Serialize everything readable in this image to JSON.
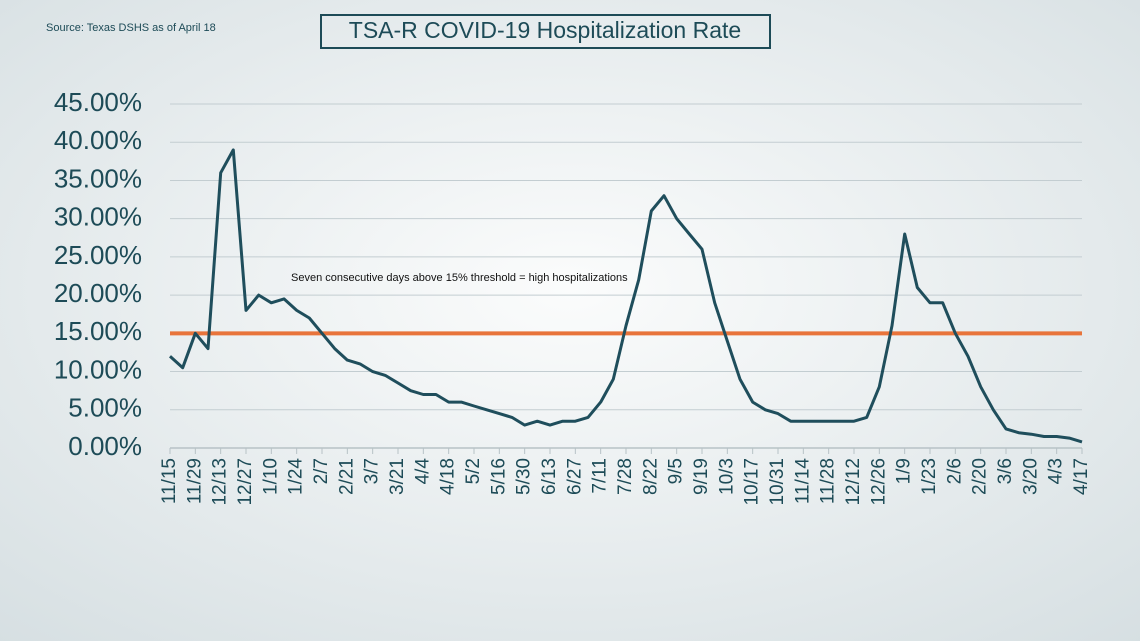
{
  "chart_data": {
    "type": "line",
    "title": "TSA-R COVID-19 Hospitalization Rate",
    "source": "Source: Texas DSHS as of April 18",
    "annotation": "Seven consecutive days above 15% threshold = high hospitalizations",
    "categories": [
      "11/15",
      null,
      "11/29",
      null,
      "12/13",
      null,
      "12/27",
      null,
      "1/10",
      null,
      "1/24",
      null,
      "2/7",
      null,
      "2/21",
      null,
      "3/7",
      null,
      "3/21",
      null,
      "4/4",
      null,
      "4/18",
      null,
      "5/2",
      null,
      "5/16",
      null,
      "5/30",
      null,
      "6/13",
      null,
      "6/27",
      null,
      "7/11",
      null,
      "7/28",
      null,
      "8/22",
      null,
      "9/5",
      null,
      "9/19",
      null,
      "10/3",
      null,
      "10/17",
      null,
      "10/31",
      null,
      "11/14",
      null,
      "11/28",
      null,
      "12/12",
      null,
      "12/26",
      null,
      "1/9",
      null,
      "1/23",
      null,
      "2/6",
      null,
      "2/20",
      null,
      "3/6",
      null,
      "3/20",
      null,
      "4/3",
      null,
      "4/17"
    ],
    "series": [
      {
        "name": "Hospitalization rate",
        "color": "#1f4e5c",
        "values": [
          12,
          10.5,
          15,
          13,
          36,
          39,
          18,
          20,
          19,
          19.5,
          18,
          17,
          15,
          13,
          11.5,
          11,
          10,
          9.5,
          8.5,
          7.5,
          7,
          7,
          6,
          6,
          5.5,
          5,
          4.5,
          4,
          3,
          3.5,
          3,
          3.5,
          3.5,
          4,
          6,
          9,
          16,
          22,
          31,
          33,
          30,
          28,
          26,
          19,
          14,
          9,
          6,
          5,
          4.5,
          3.5,
          3.5,
          3.5,
          3.5,
          3.5,
          3.5,
          4,
          8,
          16,
          28,
          21,
          19,
          19,
          15,
          12,
          8,
          5,
          2.5,
          2,
          1.8,
          1.5,
          1.5,
          1.3,
          0.8
        ]
      }
    ],
    "threshold": 15,
    "threshold_color": "#e8743b",
    "ylim": [
      0,
      45
    ],
    "yticks": [
      {
        "value": 0,
        "label": "0.00%"
      },
      {
        "value": 5,
        "label": "5.00%"
      },
      {
        "value": 10,
        "label": "10.00%"
      },
      {
        "value": 15,
        "label": "15.00%"
      },
      {
        "value": 20,
        "label": "20.00%"
      },
      {
        "value": 25,
        "label": "25.00%"
      },
      {
        "value": 30,
        "label": "30.00%"
      },
      {
        "value": 35,
        "label": "35.00%"
      },
      {
        "value": 40,
        "label": "40.00%"
      },
      {
        "value": 45,
        "label": "45.00%"
      }
    ],
    "grid": true
  }
}
